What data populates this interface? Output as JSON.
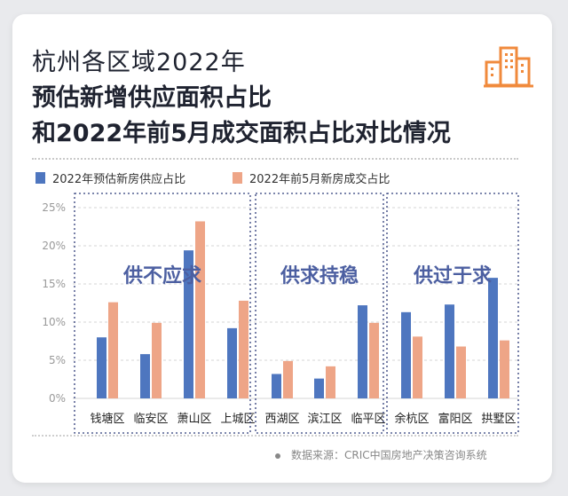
{
  "title": {
    "line1": "杭州各区域2022年",
    "line2": "预估新增供应面积占比",
    "line3": "和2022年前5月成交面积占比对比情况"
  },
  "source": "数据来源：CRIC中国房地产决策咨询系统",
  "logo_icon": "buildings-icon",
  "colors": {
    "supply": "#4e76bf",
    "deal": "#eea587",
    "group_text": "#4c5fa1",
    "axis_text": "#9a9a9a"
  },
  "chart_data": {
    "type": "bar",
    "categories": [
      "钱塘区",
      "临安区",
      "萧山区",
      "上城区",
      "西湖区",
      "滨江区",
      "临平区",
      "余杭区",
      "富阳区",
      "拱墅区"
    ],
    "series": [
      {
        "name": "2022年预估新房供应占比",
        "values": [
          8.0,
          5.8,
          19.4,
          9.2,
          3.2,
          2.6,
          12.2,
          11.3,
          12.3,
          15.8
        ]
      },
      {
        "name": "2022年前5月新房成交占比",
        "values": [
          12.6,
          9.9,
          23.2,
          12.8,
          4.9,
          4.2,
          9.9,
          8.1,
          6.8,
          7.6
        ]
      }
    ],
    "yticks": [
      "0%",
      "5%",
      "10%",
      "15%",
      "20%",
      "25%"
    ],
    "ylim": [
      0,
      25
    ],
    "groups": [
      {
        "label": "供不应求",
        "categories": [
          "钱塘区",
          "临安区",
          "萧山区",
          "上城区"
        ]
      },
      {
        "label": "供求持稳",
        "categories": [
          "西湖区",
          "滨江区",
          "临平区"
        ]
      },
      {
        "label": "供过于求",
        "categories": [
          "余杭区",
          "富阳区",
          "拱墅区"
        ]
      }
    ],
    "legend_position": "top-left",
    "grid": true
  }
}
